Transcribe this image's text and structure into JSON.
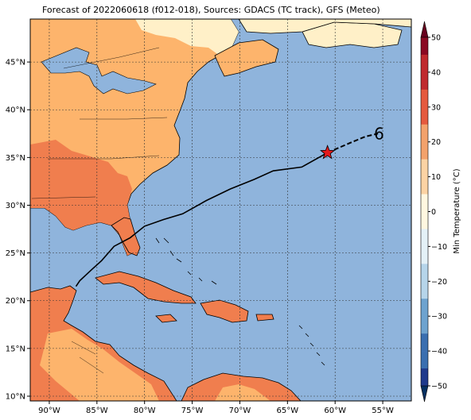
{
  "title": "Forecast of 2022060618 (f012-018), Sources: GDACS (TC track), GFS (Meteo)",
  "map": {
    "lon_range": [
      -92,
      -52
    ],
    "lat_range": [
      9.5,
      49.5
    ],
    "x_ticks": [
      "90°W",
      "85°W",
      "80°W",
      "75°W",
      "70°W",
      "65°W",
      "60°W",
      "55°W"
    ],
    "x_tick_values": [
      -90,
      -85,
      -80,
      -75,
      -70,
      -65,
      -60,
      -55
    ],
    "y_ticks": [
      "10°N",
      "15°N",
      "20°N",
      "25°N",
      "30°N",
      "35°N",
      "40°N",
      "45°N"
    ],
    "y_tick_values": [
      10,
      15,
      20,
      25,
      30,
      35,
      40,
      45
    ],
    "gridlines": true,
    "ocean_color": "#8fb4dc",
    "storm": {
      "track_past": [
        [
          -87.2,
          21.5
        ],
        [
          -86.8,
          22.1
        ],
        [
          -85.5,
          23.3
        ],
        [
          -84.5,
          24.2
        ],
        [
          -83.2,
          25.7
        ],
        [
          -81.5,
          26.6
        ],
        [
          -80.0,
          27.8
        ],
        [
          -78.0,
          28.5
        ],
        [
          -76.0,
          29.1
        ],
        [
          -73.5,
          30.5
        ],
        [
          -71.0,
          31.7
        ],
        [
          -68.5,
          32.7
        ],
        [
          -66.5,
          33.6
        ],
        [
          -63.5,
          34.0
        ],
        [
          -60.8,
          35.5
        ]
      ],
      "track_forecast": [
        [
          -60.8,
          35.5
        ],
        [
          -58.5,
          36.5
        ],
        [
          -56.8,
          37.2
        ],
        [
          -55.5,
          37.5
        ]
      ],
      "current_position": [
        -60.8,
        35.5
      ],
      "marker_color": "#e31a1c",
      "forecast_symbol": "6"
    }
  },
  "colorbar": {
    "label": "Min Temperature (°C)",
    "ticks": [
      "50",
      "40",
      "30",
      "20",
      "10",
      "0",
      "−10",
      "−20",
      "−30",
      "−40",
      "−50"
    ],
    "colors": [
      "#67001f",
      "#b2182b",
      "#d6604d",
      "#f4a582",
      "#fddbc7",
      "#f7f7f7",
      "#d1e5f0",
      "#92c5de",
      "#4393c3",
      "#2166ac",
      "#053061"
    ]
  }
}
